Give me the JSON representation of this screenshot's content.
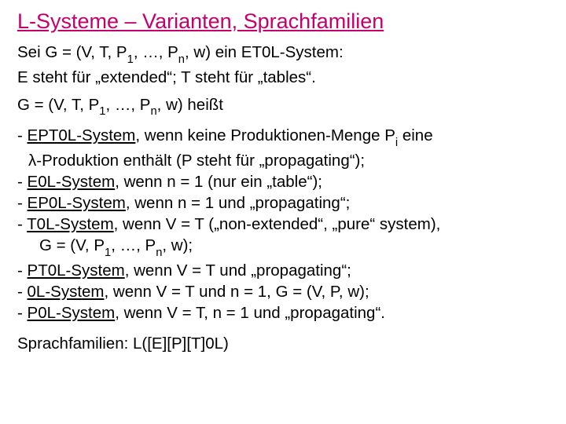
{
  "colors": {
    "accent": "#c5006e",
    "text": "#000000",
    "background": "#ffffff"
  },
  "typography": {
    "title_fontsize": 27,
    "body_fontsize": 20.5,
    "font_family": "Arial"
  },
  "title": "L-Systeme – Varianten, Sprachfamilien",
  "intro": {
    "line1a": "Sei G = (V, T, P",
    "line1b": ", …, P",
    "line1c": ", w) ein ET0L-System:",
    "sub1": "1",
    "subn": "n",
    "line2": "E steht für „extended“; T steht für „tables“."
  },
  "heisst": {
    "a": "G = (V, T, P",
    "b": ", …, P",
    "c": ", w) heißt",
    "sub1": "1",
    "subn": "n"
  },
  "items": {
    "ept0l": {
      "dash": "- ",
      "name": "EPT0L-System",
      "tail1a": ", wenn keine Produktionen-Menge P",
      "subi": "i",
      "tail1b": " eine",
      "line2": "λ-Produktion enthält (P steht für „propagating“);"
    },
    "e0l": {
      "dash": "- ",
      "name": "E0L-System",
      "tail": ", wenn n = 1 (nur ein „table“);"
    },
    "ep0l": {
      "dash": "- ",
      "name": "EP0L-System",
      "tail": ", wenn n = 1 und „propagating“;"
    },
    "t0l": {
      "dash": "- ",
      "name": "T0L-System",
      "tail": ", wenn V = T („non-extended“, „pure“ system),",
      "line2a": "G = (V, P",
      "sub1": "1",
      "line2b": ", …, P",
      "subn": "n",
      "line2c": ", w);"
    },
    "pt0l": {
      "dash": "- ",
      "name": "PT0L-System",
      "tail": ", wenn V = T und „propagating“;"
    },
    "zl": {
      "dash": "- ",
      "name": "0L-System",
      "tail": ", wenn V = T und n = 1, G = (V, P, w);"
    },
    "p0l": {
      "dash": "- ",
      "name": "P0L-System",
      "tail": ", wenn V = T, n = 1 und „propagating“."
    }
  },
  "families": "Sprachfamilien:   L([E][P][T]0L)"
}
